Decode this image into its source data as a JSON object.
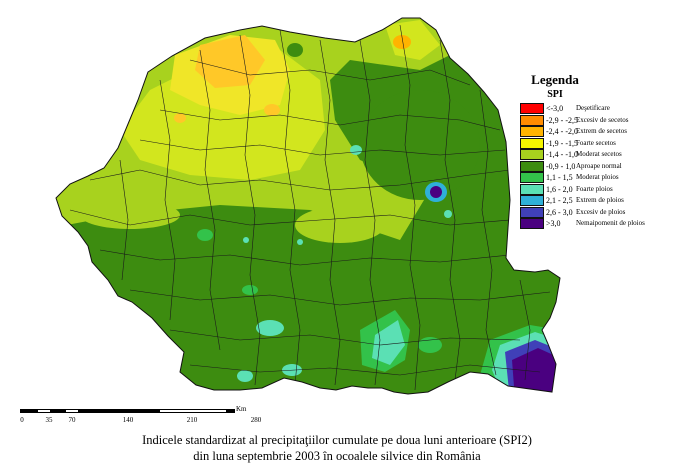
{
  "legend": {
    "title": "Legenda",
    "subtitle": "SPI",
    "items": [
      {
        "range": "<-3,0",
        "label": "Deşetificare",
        "color": "#ff0000"
      },
      {
        "range": "-2,9 - -2,5",
        "label": "Excesiv de secetos",
        "color": "#ff8c00"
      },
      {
        "range": "-2,4 - -2,0",
        "label": "Extrem de secetos",
        "color": "#ffb400"
      },
      {
        "range": "-1,9 - -1,5",
        "label": "Foarte secetos",
        "color": "#f5f500"
      },
      {
        "range": "-1,4 - -1,0",
        "label": "Moderat secetos",
        "color": "#a8d21e"
      },
      {
        "range": "-0,9 - 1,0",
        "label": "Aproape normal",
        "color": "#3d8c10"
      },
      {
        "range": "1,1 - 1,5",
        "label": "Moderat ploios",
        "color": "#33c24a"
      },
      {
        "range": "1,6 - 2,0",
        "label": "Foarte ploios",
        "color": "#5be0b4"
      },
      {
        "range": "2,1 - 2,5",
        "label": "Extrem de ploios",
        "color": "#2fb0d8"
      },
      {
        "range": "2,6 - 3,0",
        "label": "Excesiv de ploios",
        "color": "#4040b8"
      },
      {
        "range": ">3,0",
        "label": "Nemaipomenit de ploios",
        "color": "#4a0080"
      }
    ]
  },
  "scale": {
    "unit": "Km",
    "ticks": [
      "0",
      "35",
      "70",
      "140",
      "210",
      "280"
    ]
  },
  "caption": {
    "line1": "Indicele standardizat al precipitaţiilor cumulate pe doua luni anterioare (SPI2)",
    "line2": "din luna septembrie 2003 în ocoalele silvice din România"
  }
}
